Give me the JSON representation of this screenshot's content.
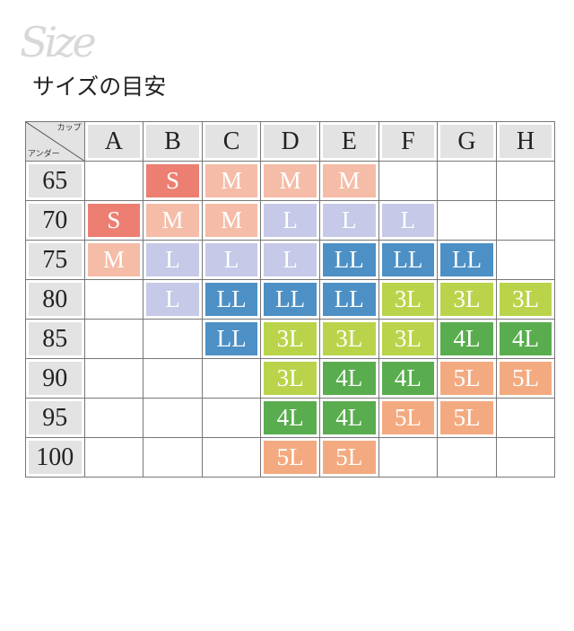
{
  "logo_text": "Size",
  "title": "サイズの目安",
  "corner": {
    "top": "カップ",
    "bottom": "アンダー"
  },
  "cups": [
    "A",
    "B",
    "C",
    "D",
    "E",
    "F",
    "G",
    "H"
  ],
  "colors": {
    "S": "#ec7f72",
    "M": "#f5bca8",
    "L": "#c6c9e7",
    "LL": "#4d90c5",
    "3L": "#b9d44a",
    "4L": "#59ad4e",
    "5L": "#f4aa80"
  },
  "rows": [
    {
      "under": "65",
      "sizes": [
        "",
        "S",
        "M",
        "M",
        "M",
        "",
        "",
        ""
      ]
    },
    {
      "under": "70",
      "sizes": [
        "S",
        "M",
        "M",
        "L",
        "L",
        "L",
        "",
        ""
      ]
    },
    {
      "under": "75",
      "sizes": [
        "M",
        "L",
        "L",
        "L",
        "LL",
        "LL",
        "LL",
        ""
      ]
    },
    {
      "under": "80",
      "sizes": [
        "",
        "L",
        "LL",
        "LL",
        "LL",
        "3L",
        "3L",
        "3L"
      ]
    },
    {
      "under": "85",
      "sizes": [
        "",
        "",
        "LL",
        "3L",
        "3L",
        "3L",
        "4L",
        "4L"
      ]
    },
    {
      "under": "90",
      "sizes": [
        "",
        "",
        "",
        "3L",
        "4L",
        "4L",
        "5L",
        "5L"
      ]
    },
    {
      "under": "95",
      "sizes": [
        "",
        "",
        "",
        "4L",
        "4L",
        "5L",
        "5L",
        ""
      ]
    },
    {
      "under": "100",
      "sizes": [
        "",
        "",
        "",
        "5L",
        "5L",
        "",
        "",
        ""
      ]
    }
  ]
}
